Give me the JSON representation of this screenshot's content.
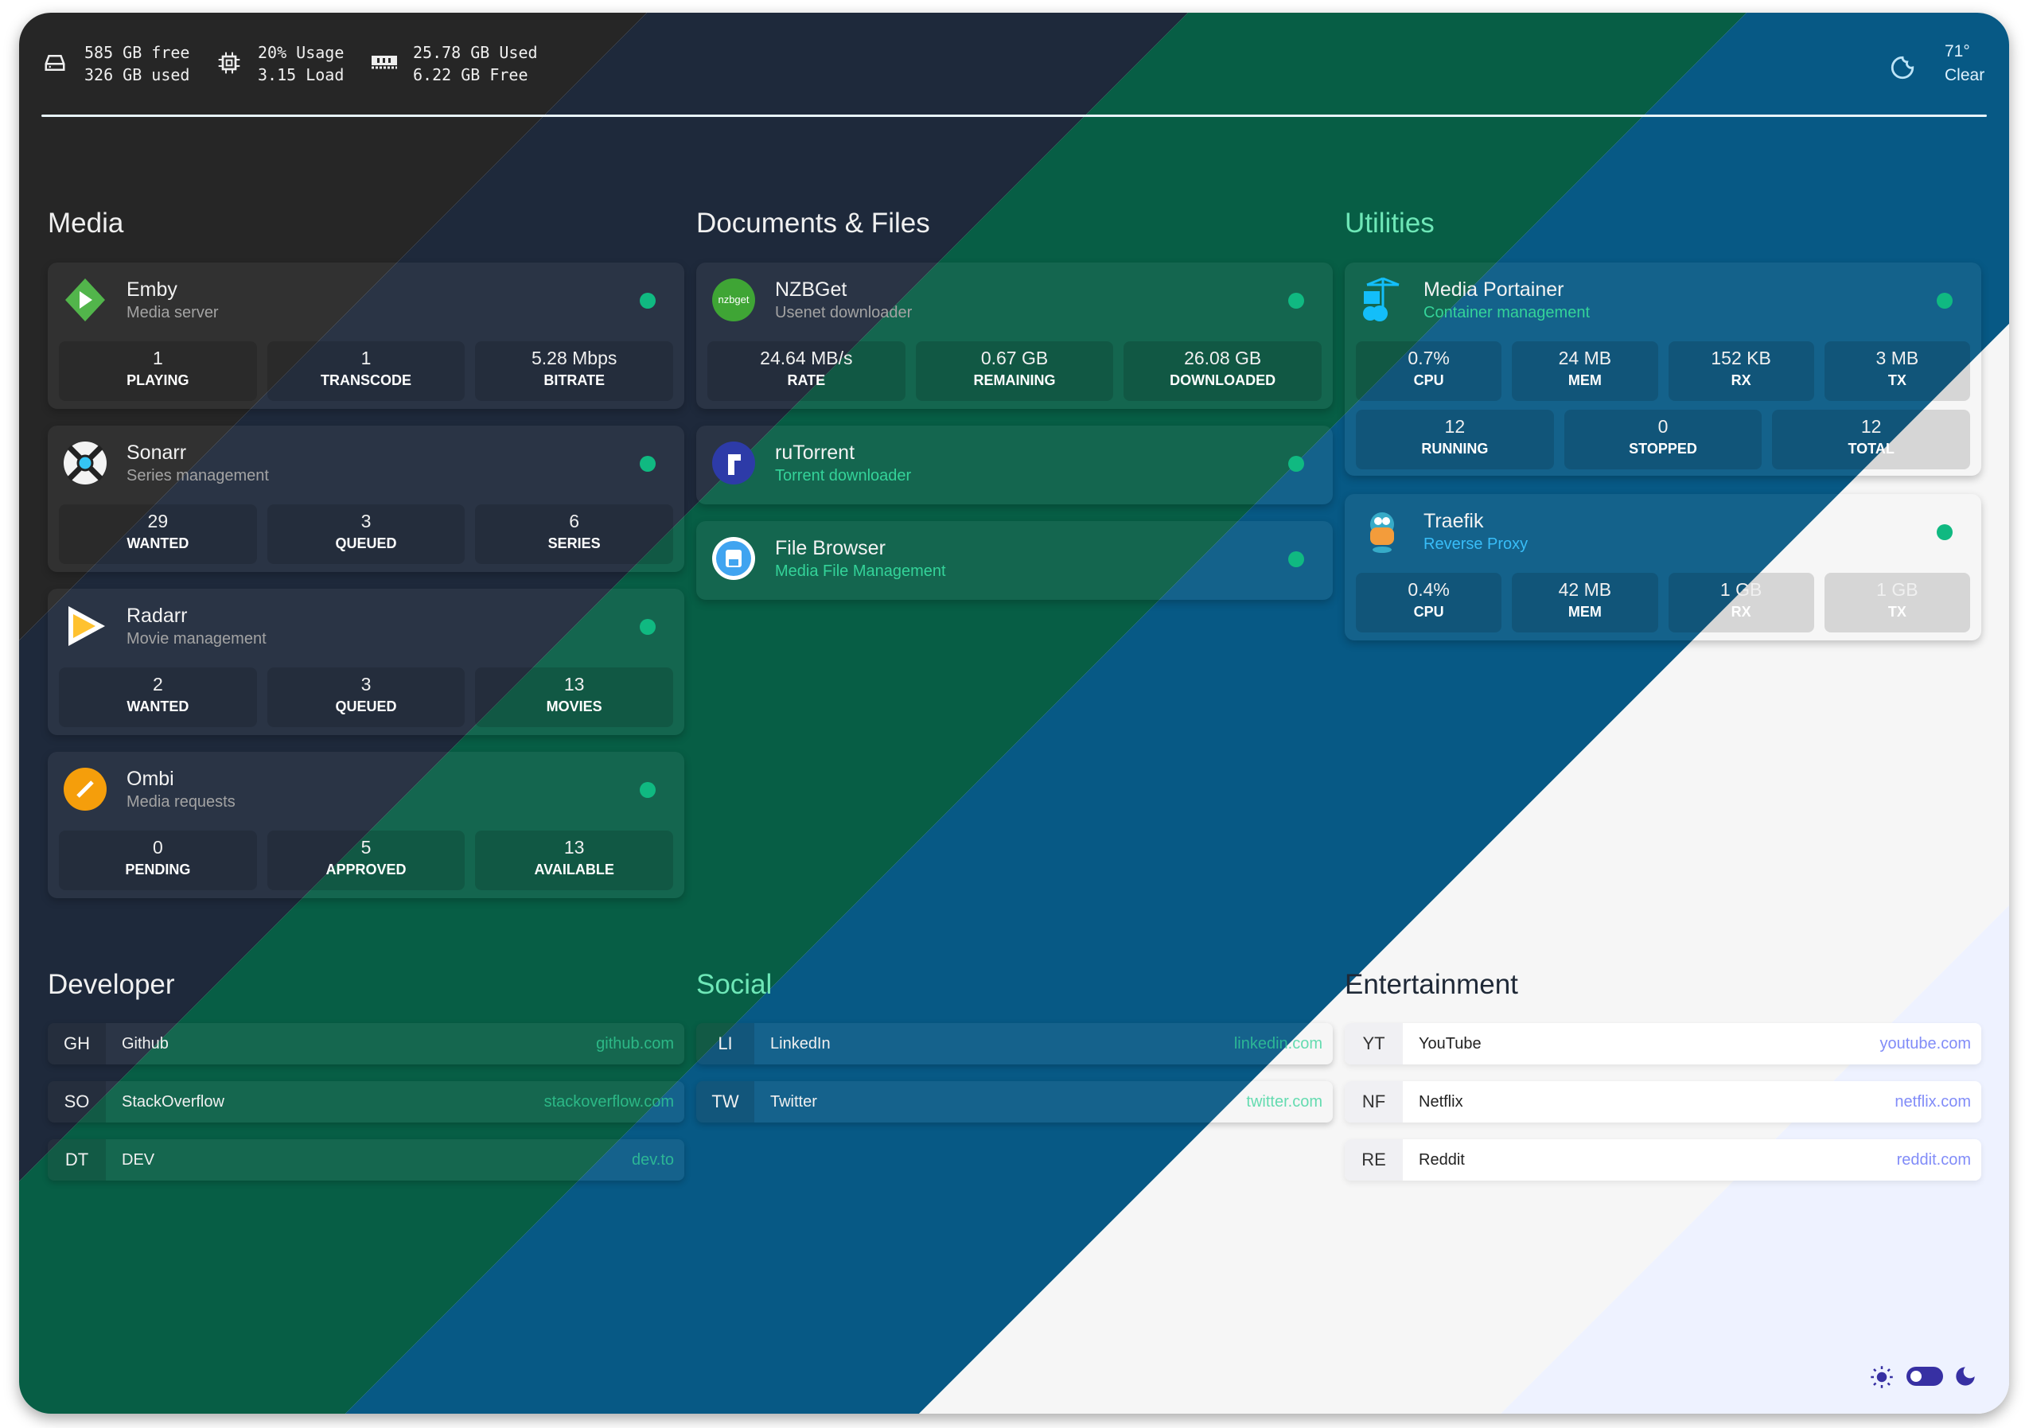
{
  "header": {
    "disk": {
      "icon": "hard-drive-icon",
      "line1": "585 GB free",
      "line2": "326 GB used"
    },
    "cpu": {
      "icon": "cpu-chip-icon",
      "line1": "20% Usage",
      "line2": "3.15 Load"
    },
    "ram": {
      "icon": "memory-icon",
      "line1": "25.78 GB Used",
      "line2": "6.22 GB Free"
    },
    "weather": {
      "icon": "moon-outline-icon",
      "temp": "71°",
      "cond": "Clear"
    }
  },
  "sections": {
    "media": {
      "title": "Media",
      "cards": [
        {
          "name": "Emby",
          "sub": "Media server",
          "icon": "emby-logo-icon",
          "stats": [
            {
              "v": "1",
              "l": "PLAYING"
            },
            {
              "v": "1",
              "l": "TRANSCODE"
            },
            {
              "v": "5.28 Mbps",
              "l": "BITRATE"
            }
          ]
        },
        {
          "name": "Sonarr",
          "sub": "Series management",
          "icon": "sonarr-logo-icon",
          "stats": [
            {
              "v": "29",
              "l": "WANTED"
            },
            {
              "v": "3",
              "l": "QUEUED"
            },
            {
              "v": "6",
              "l": "SERIES"
            }
          ]
        },
        {
          "name": "Radarr",
          "sub": "Movie management",
          "icon": "radarr-logo-icon",
          "stats": [
            {
              "v": "2",
              "l": "WANTED"
            },
            {
              "v": "3",
              "l": "QUEUED"
            },
            {
              "v": "13",
              "l": "MOVIES"
            }
          ]
        },
        {
          "name": "Ombi",
          "sub": "Media requests",
          "icon": "ombi-logo-icon",
          "stats": [
            {
              "v": "0",
              "l": "PENDING"
            },
            {
              "v": "5",
              "l": "APPROVED"
            },
            {
              "v": "13",
              "l": "AVAILABLE"
            }
          ]
        }
      ]
    },
    "docs": {
      "title": "Documents & Files",
      "cards": [
        {
          "name": "NZBGet",
          "sub": "Usenet downloader",
          "icon": "nzbget-logo-icon",
          "logo_text": "nzbget",
          "stats": [
            {
              "v": "24.64 MB/s",
              "l": "RATE"
            },
            {
              "v": "0.67 GB",
              "l": "REMAINING"
            },
            {
              "v": "26.08 GB",
              "l": "DOWNLOADED"
            }
          ]
        },
        {
          "name": "ruTorrent",
          "sub": "Torrent downloader",
          "icon": "rutorrent-logo-icon",
          "stats": []
        },
        {
          "name": "File Browser",
          "sub": "Media File Management",
          "icon": "filebrowser-logo-icon",
          "stats": []
        }
      ]
    },
    "utilities": {
      "title": "Utilities",
      "cards": [
        {
          "name": "Media Portainer",
          "sub": "Container management",
          "icon": "portainer-logo-icon",
          "stats": [
            {
              "v": "0.7%",
              "l": "CPU"
            },
            {
              "v": "24 MB",
              "l": "MEM"
            },
            {
              "v": "152 KB",
              "l": "RX"
            },
            {
              "v": "3 MB",
              "l": "TX"
            }
          ],
          "stats2": [
            {
              "v": "12",
              "l": "RUNNING"
            },
            {
              "v": "0",
              "l": "STOPPED"
            },
            {
              "v": "12",
              "l": "TOTAL"
            }
          ]
        },
        {
          "name": "Traefik",
          "sub": "Reverse Proxy",
          "icon": "traefik-logo-icon",
          "stats": [
            {
              "v": "0.4%",
              "l": "CPU"
            },
            {
              "v": "42 MB",
              "l": "MEM"
            },
            {
              "v": "1 GB",
              "l": "RX"
            },
            {
              "v": "1 GB",
              "l": "TX"
            }
          ]
        }
      ]
    },
    "developer": {
      "title": "Developer",
      "items": [
        {
          "abbr": "GH",
          "name": "Github",
          "url": "github.com"
        },
        {
          "abbr": "SO",
          "name": "StackOverflow",
          "url": "stackoverflow.com"
        },
        {
          "abbr": "DT",
          "name": "DEV",
          "url": "dev.to"
        }
      ]
    },
    "social": {
      "title": "Social",
      "items": [
        {
          "abbr": "LI",
          "name": "LinkedIn",
          "url": "linkedin.com"
        },
        {
          "abbr": "TW",
          "name": "Twitter",
          "url": "twitter.com"
        }
      ]
    },
    "entertainment": {
      "title": "Entertainment",
      "items": [
        {
          "abbr": "YT",
          "name": "YouTube",
          "url": "youtube.com"
        },
        {
          "abbr": "NF",
          "name": "Netflix",
          "url": "netflix.com"
        },
        {
          "abbr": "RE",
          "name": "Reddit",
          "url": "reddit.com"
        }
      ]
    }
  },
  "theme_toggle": {
    "state": "dark",
    "accent": "#3730a3"
  },
  "colors": {
    "status_up": "#10b981",
    "bands": [
      "#262626",
      "#1e293b",
      "#075e45",
      "#075985",
      "#f6f6f6",
      "#eef2ff"
    ]
  }
}
